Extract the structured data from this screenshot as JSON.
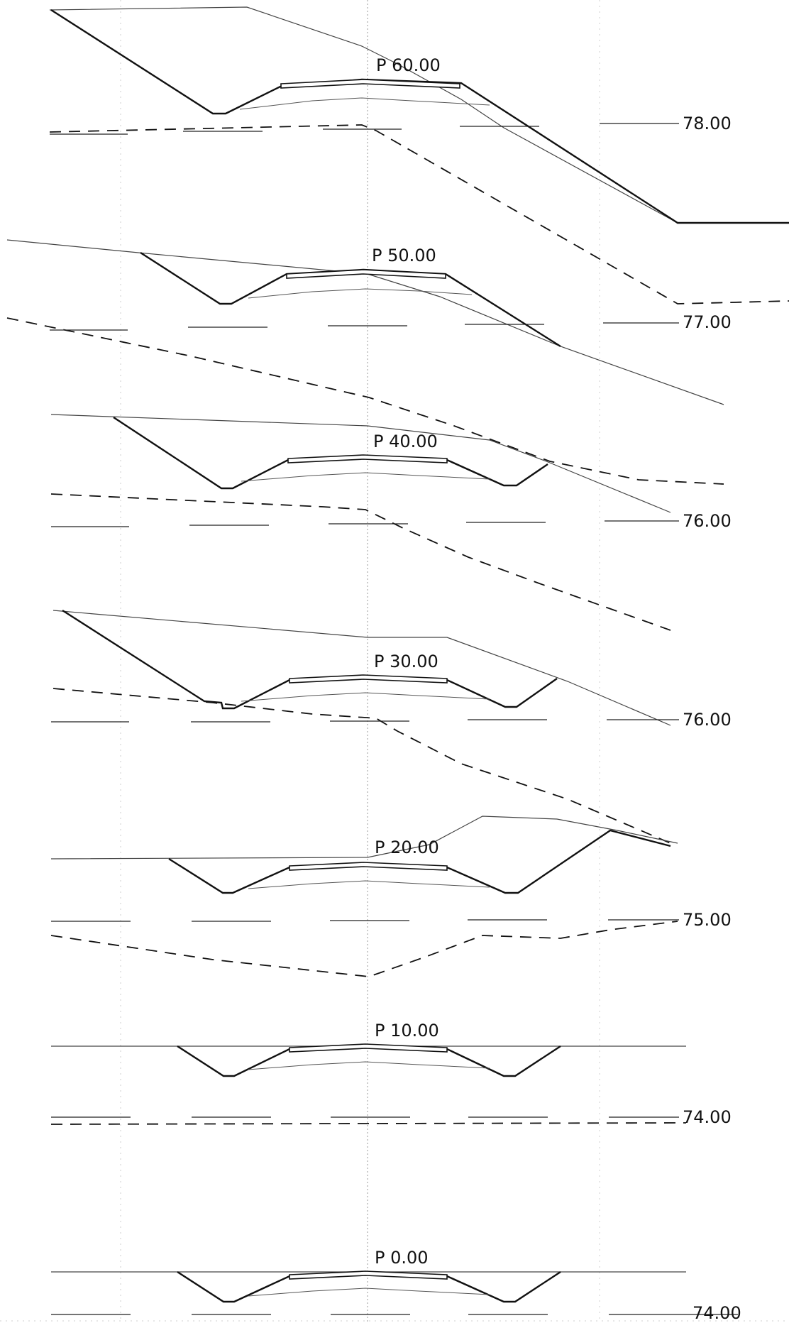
{
  "sections": [
    {
      "station_label": "P 60.00",
      "elevation_label": "78.00"
    },
    {
      "station_label": "P 50.00",
      "elevation_label": "77.00"
    },
    {
      "station_label": "P 40.00",
      "elevation_label": "76.00"
    },
    {
      "station_label": "P 30.00",
      "elevation_label": "76.00"
    },
    {
      "station_label": "P 20.00",
      "elevation_label": "75.00"
    },
    {
      "station_label": "P 10.00",
      "elevation_label": "74.00"
    },
    {
      "station_label": "P 0.00",
      "elevation_label": "74.00"
    }
  ]
}
